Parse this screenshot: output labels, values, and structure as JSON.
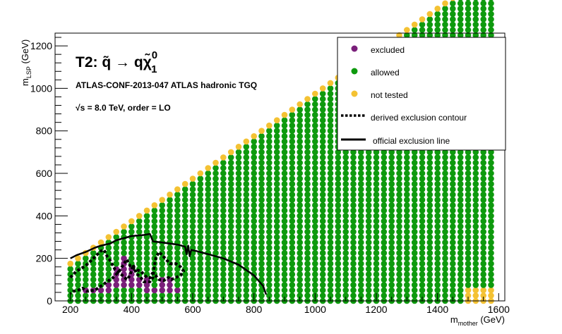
{
  "colors": {
    "excluded": "#7a1f7a",
    "allowed": "#0e9a0e",
    "not_tested": "#f4c233",
    "line": "#000000",
    "background": "#ffffff"
  },
  "chart_data": {
    "type": "scatter",
    "title": "T2: q̃ → qχ̃⁰₁",
    "title_parts": {
      "prefix": "T2:  ",
      "lhs": "q̃",
      "arrow": " → ",
      "rhs": "qχ̃",
      "sup": "0",
      "sub": "1"
    },
    "subtitle": "ATLAS-CONF-2013-047  ATLAS hadronic TGQ",
    "energy_text": {
      "sqrt": "√s",
      "rest": " =  8.0 TeV, order =  LO"
    },
    "xlabel": {
      "main": "m",
      "sub": "mother",
      "unit": " (GeV)"
    },
    "ylabel": {
      "main": "m",
      "sub": "LSP",
      "unit": " (GeV)"
    },
    "xlim": [
      150,
      1620
    ],
    "ylim": [
      0,
      1260
    ],
    "xticks": [
      200,
      400,
      600,
      800,
      1000,
      1200,
      1400,
      1600
    ],
    "xtick_labels": [
      "200",
      "400",
      "600",
      "800",
      "1000",
      "1200",
      "1400",
      "1600"
    ],
    "yticks": [
      0,
      200,
      400,
      600,
      800,
      1000,
      1200
    ],
    "ytick_labels": [
      "0",
      "200",
      "400",
      "600",
      "800",
      "1000",
      "1200"
    ],
    "grid": false,
    "legend_position": "top-right",
    "legend": [
      {
        "label": "excluded",
        "kind": "marker",
        "color": "#7a1f7a"
      },
      {
        "label": "allowed",
        "kind": "marker",
        "color": "#0e9a0e"
      },
      {
        "label": "not tested",
        "kind": "marker",
        "color": "#f4c233"
      },
      {
        "label": "derived exclusion contour",
        "kind": "dashed"
      },
      {
        "label": "official exclusion line",
        "kind": "solid"
      }
    ],
    "grid_scan": {
      "x_min": 200,
      "x_max": 1575,
      "x_step": 25,
      "y_min": 0,
      "y_step": 25,
      "diagonal_offset": 25,
      "not_tested_corner": {
        "x_from": 1500,
        "y_max": 60
      }
    },
    "excluded_regions": [
      {
        "x_range": [
          250,
          340
        ],
        "y_range": [
          40,
          60
        ]
      },
      {
        "x_range": [
          330,
          380
        ],
        "y_range": [
          60,
          100
        ]
      },
      {
        "x_range": [
          350,
          420
        ],
        "y_range": [
          100,
          170
        ]
      },
      {
        "x_range": [
          395,
          460
        ],
        "y_range": [
          60,
          110
        ]
      },
      {
        "x_range": [
          450,
          565
        ],
        "y_range": [
          30,
          70
        ]
      },
      {
        "x_range": [
          480,
          530
        ],
        "y_range": [
          70,
          100
        ]
      }
    ],
    "excluded_points": [
      {
        "x": 375,
        "y": 175
      },
      {
        "x": 400,
        "y": 150
      },
      {
        "x": 375,
        "y": 200
      },
      {
        "x": 325,
        "y": 75
      }
    ],
    "derived_contour": [
      [
        200,
        110
      ],
      [
        220,
        140
      ],
      [
        250,
        165
      ],
      [
        275,
        200
      ],
      [
        300,
        235
      ],
      [
        310,
        240
      ],
      [
        320,
        210
      ],
      [
        330,
        190
      ],
      [
        345,
        150
      ],
      [
        370,
        120
      ],
      [
        385,
        100
      ],
      [
        395,
        120
      ],
      [
        405,
        170
      ],
      [
        415,
        130
      ],
      [
        430,
        110
      ],
      [
        440,
        90
      ],
      [
        460,
        90
      ],
      [
        470,
        110
      ],
      [
        475,
        170
      ],
      [
        480,
        205
      ],
      [
        490,
        230
      ],
      [
        510,
        200
      ],
      [
        525,
        175
      ],
      [
        545,
        175
      ],
      [
        560,
        160
      ],
      [
        570,
        140
      ],
      [
        560,
        120
      ],
      [
        545,
        110
      ],
      [
        530,
        100
      ],
      [
        520,
        110
      ],
      [
        505,
        95
      ],
      [
        490,
        100
      ],
      [
        478,
        120
      ],
      [
        468,
        130
      ],
      [
        460,
        108
      ],
      [
        450,
        110
      ],
      [
        430,
        140
      ],
      [
        410,
        150
      ],
      [
        395,
        165
      ],
      [
        385,
        195
      ],
      [
        375,
        175
      ],
      [
        360,
        140
      ],
      [
        340,
        110
      ],
      [
        320,
        90
      ],
      [
        300,
        70
      ],
      [
        280,
        50
      ],
      [
        255,
        45
      ],
      [
        240,
        60
      ],
      [
        225,
        50
      ],
      [
        210,
        45
      ],
      [
        200,
        35
      ]
    ],
    "official_line": [
      [
        200,
        200
      ],
      [
        220,
        215
      ],
      [
        250,
        230
      ],
      [
        280,
        250
      ],
      [
        300,
        260
      ],
      [
        330,
        270
      ],
      [
        350,
        285
      ],
      [
        400,
        305
      ],
      [
        440,
        310
      ],
      [
        460,
        315
      ],
      [
        470,
        280
      ],
      [
        500,
        275
      ],
      [
        550,
        265
      ],
      [
        575,
        255
      ],
      [
        580,
        220
      ],
      [
        585,
        260
      ],
      [
        590,
        210
      ],
      [
        595,
        240
      ],
      [
        610,
        235
      ],
      [
        650,
        220
      ],
      [
        700,
        200
      ],
      [
        750,
        170
      ],
      [
        800,
        120
      ],
      [
        830,
        70
      ],
      [
        840,
        30
      ]
    ]
  }
}
